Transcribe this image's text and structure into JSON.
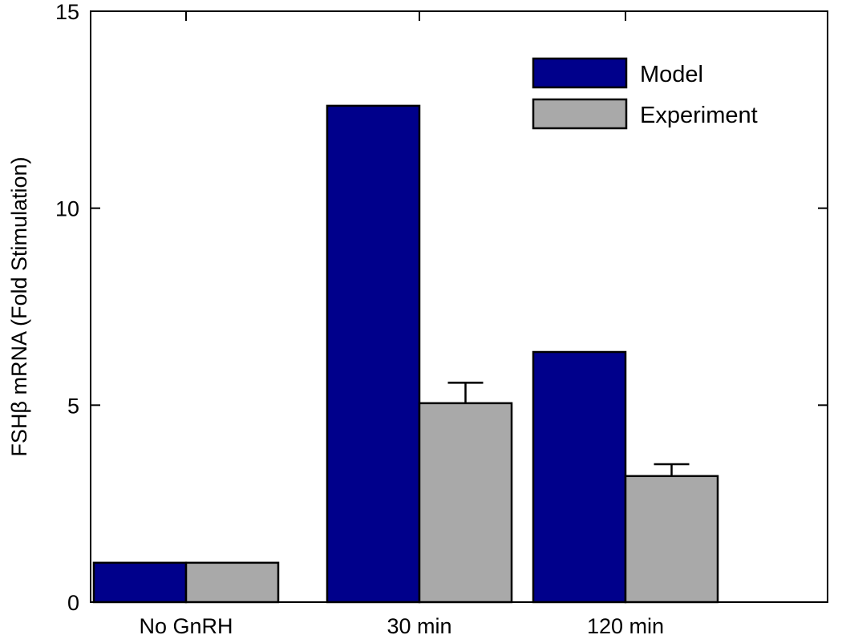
{
  "chart_data": {
    "type": "bar",
    "ylabel": "FSHβ mRNA (Fold Stimulation)",
    "xlabel": "",
    "categories": [
      "No GnRH",
      "30 min",
      "120 min"
    ],
    "series": [
      {
        "name": "Model",
        "values": [
          1.0,
          12.6,
          6.35
        ],
        "color": "#00008b",
        "errors": [
          null,
          null,
          null
        ]
      },
      {
        "name": "Experiment",
        "values": [
          1.0,
          5.05,
          3.2
        ],
        "color": "#a9a9a9",
        "errors": [
          0,
          0.52,
          0.3
        ]
      }
    ],
    "ylim": [
      0,
      15
    ],
    "yticks": [
      0,
      5,
      10,
      15
    ],
    "yticklabels": [
      "0",
      "5",
      "10",
      "15"
    ],
    "grid": false,
    "legend_position": "top-right"
  }
}
